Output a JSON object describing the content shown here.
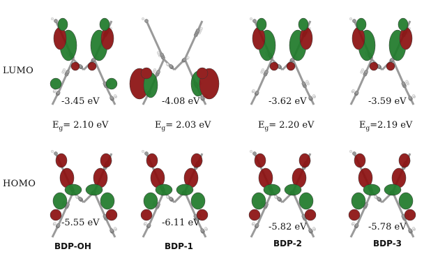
{
  "row_labels": {
    "lumo": "LUMO",
    "homo": "HOMO"
  },
  "molecules": [
    {
      "name": "BDP-OH",
      "lumo_energy": "-3.45 eV",
      "gap_prefix": "E",
      "gap_sub": "g",
      "gap_value": "= 2.10 eV",
      "homo_energy": "-5.55 eV"
    },
    {
      "name": "BDP-1",
      "lumo_energy": "-4.08 eV",
      "gap_prefix": "E",
      "gap_sub": "g",
      "gap_value": "= 2.03 eV",
      "homo_energy": "-6.11 eV"
    },
    {
      "name": "BDP-2",
      "lumo_energy": "-3.62 eV",
      "gap_prefix": "E",
      "gap_sub": "g",
      "gap_value": "= 2.20 eV",
      "homo_energy": "-5.82 eV"
    },
    {
      "name": "BDP-3",
      "lumo_energy": "-3.59 eV",
      "gap_prefix": "E",
      "gap_sub": "g",
      "gap_value": "=2.19 eV",
      "homo_energy": "-5.78 eV"
    }
  ],
  "colors": {
    "lobe_positive": "#8b1010",
    "lobe_negative": "#1f7a2a",
    "atom_carbon": "#9a9a9a",
    "atom_hydrogen": "#e8e8e8"
  }
}
